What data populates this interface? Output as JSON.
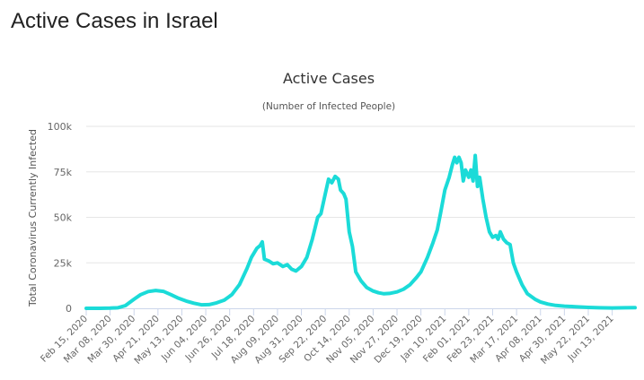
{
  "page": {
    "heading": "Active Cases in Israel"
  },
  "chart_data": {
    "type": "line",
    "title": "Active Cases",
    "subtitle": "(Number of Infected People)",
    "xlabel": "",
    "ylabel": "Total Coronavirus Currently Infected",
    "ylim": [
      0,
      100000
    ],
    "yticks": [
      0,
      25000,
      50000,
      75000,
      100000
    ],
    "ytick_labels": [
      "0",
      "25k",
      "50k",
      "75k",
      "100k"
    ],
    "x_start": "2020-02-15",
    "x_end": "2021-07-04",
    "xtick_dates": [
      "2020-02-15",
      "2020-03-08",
      "2020-03-30",
      "2020-04-21",
      "2020-05-13",
      "2020-06-04",
      "2020-06-26",
      "2020-07-18",
      "2020-08-09",
      "2020-08-31",
      "2020-09-22",
      "2020-10-14",
      "2020-11-05",
      "2020-11-27",
      "2020-12-19",
      "2021-01-10",
      "2021-02-01",
      "2021-02-23",
      "2021-03-17",
      "2021-04-08",
      "2021-04-30",
      "2021-05-22",
      "2021-06-13"
    ],
    "xtick_labels": [
      "Feb 15, 2020",
      "Mar 08, 2020",
      "Mar 30, 2020",
      "Apr 21, 2020",
      "May 13, 2020",
      "Jun 04, 2020",
      "Jun 26, 2020",
      "Jul 18, 2020",
      "Aug 09, 2020",
      "Aug 31, 2020",
      "Sep 22, 2020",
      "Oct 14, 2020",
      "Nov 05, 2020",
      "Nov 27, 2020",
      "Dec 19, 2020",
      "Jan 10, 2021",
      "Feb 01, 2021",
      "Feb 23, 2021",
      "Mar 17, 2021",
      "Apr 08, 2021",
      "Apr 30, 2021",
      "May 22, 2021",
      "Jun 13, 2021"
    ],
    "grid": true,
    "legend": false,
    "series": [
      {
        "color": "#1bdbd8",
        "points": [
          [
            "2020-02-15",
            0
          ],
          [
            "2020-02-28",
            0
          ],
          [
            "2020-03-08",
            100
          ],
          [
            "2020-03-15",
            300
          ],
          [
            "2020-03-22",
            1500
          ],
          [
            "2020-03-30",
            5000
          ],
          [
            "2020-04-05",
            7500
          ],
          [
            "2020-04-12",
            9200
          ],
          [
            "2020-04-19",
            9800
          ],
          [
            "2020-04-26",
            9300
          ],
          [
            "2020-05-03",
            7500
          ],
          [
            "2020-05-10",
            5500
          ],
          [
            "2020-05-17",
            4000
          ],
          [
            "2020-05-24",
            2800
          ],
          [
            "2020-05-31",
            1900
          ],
          [
            "2020-06-07",
            2000
          ],
          [
            "2020-06-14",
            3000
          ],
          [
            "2020-06-21",
            4500
          ],
          [
            "2020-06-28",
            7500
          ],
          [
            "2020-07-05",
            13000
          ],
          [
            "2020-07-12",
            22000
          ],
          [
            "2020-07-16",
            28000
          ],
          [
            "2020-07-21",
            33000
          ],
          [
            "2020-07-24",
            34500
          ],
          [
            "2020-07-26",
            36500
          ],
          [
            "2020-07-28",
            27000
          ],
          [
            "2020-08-01",
            26000
          ],
          [
            "2020-08-05",
            24500
          ],
          [
            "2020-08-09",
            25000
          ],
          [
            "2020-08-14",
            23000
          ],
          [
            "2020-08-18",
            24000
          ],
          [
            "2020-08-22",
            21500
          ],
          [
            "2020-08-26",
            20500
          ],
          [
            "2020-08-31",
            23000
          ],
          [
            "2020-09-05",
            28000
          ],
          [
            "2020-09-10",
            38000
          ],
          [
            "2020-09-15",
            50000
          ],
          [
            "2020-09-18",
            52000
          ],
          [
            "2020-09-22",
            63000
          ],
          [
            "2020-09-25",
            71000
          ],
          [
            "2020-09-28",
            69000
          ],
          [
            "2020-10-01",
            72500
          ],
          [
            "2020-10-04",
            71000
          ],
          [
            "2020-10-06",
            65000
          ],
          [
            "2020-10-09",
            63000
          ],
          [
            "2020-10-11",
            60000
          ],
          [
            "2020-10-14",
            42000
          ],
          [
            "2020-10-17",
            34000
          ],
          [
            "2020-10-20",
            20000
          ],
          [
            "2020-10-25",
            15000
          ],
          [
            "2020-10-30",
            11500
          ],
          [
            "2020-11-05",
            9500
          ],
          [
            "2020-11-10",
            8500
          ],
          [
            "2020-11-15",
            8000
          ],
          [
            "2020-11-20",
            8200
          ],
          [
            "2020-11-27",
            9000
          ],
          [
            "2020-12-03",
            10500
          ],
          [
            "2020-12-09",
            13000
          ],
          [
            "2020-12-15",
            17000
          ],
          [
            "2020-12-19",
            20000
          ],
          [
            "2020-12-25",
            28000
          ],
          [
            "2020-12-30",
            36000
          ],
          [
            "2021-01-03",
            43000
          ],
          [
            "2021-01-06",
            52000
          ],
          [
            "2021-01-10",
            65000
          ],
          [
            "2021-01-14",
            72000
          ],
          [
            "2021-01-17",
            79000
          ],
          [
            "2021-01-19",
            83000
          ],
          [
            "2021-01-21",
            80000
          ],
          [
            "2021-01-23",
            83000
          ],
          [
            "2021-01-25",
            80000
          ],
          [
            "2021-01-27",
            70000
          ],
          [
            "2021-01-29",
            76000
          ],
          [
            "2021-02-01",
            72000
          ],
          [
            "2021-02-03",
            76000
          ],
          [
            "2021-02-05",
            70000
          ],
          [
            "2021-02-07",
            84000
          ],
          [
            "2021-02-09",
            67000
          ],
          [
            "2021-02-11",
            72000
          ],
          [
            "2021-02-14",
            60000
          ],
          [
            "2021-02-17",
            50000
          ],
          [
            "2021-02-20",
            42000
          ],
          [
            "2021-02-23",
            39000
          ],
          [
            "2021-02-26",
            40000
          ],
          [
            "2021-02-28",
            38000
          ],
          [
            "2021-03-02",
            42000
          ],
          [
            "2021-03-05",
            38000
          ],
          [
            "2021-03-08",
            36000
          ],
          [
            "2021-03-11",
            35000
          ],
          [
            "2021-03-14",
            25000
          ],
          [
            "2021-03-17",
            20000
          ],
          [
            "2021-03-22",
            13000
          ],
          [
            "2021-03-27",
            8000
          ],
          [
            "2021-04-03",
            5000
          ],
          [
            "2021-04-08",
            3500
          ],
          [
            "2021-04-15",
            2300
          ],
          [
            "2021-04-22",
            1600
          ],
          [
            "2021-04-30",
            1200
          ],
          [
            "2021-05-10",
            900
          ],
          [
            "2021-05-22",
            500
          ],
          [
            "2021-06-01",
            300
          ],
          [
            "2021-06-13",
            200
          ],
          [
            "2021-06-25",
            300
          ],
          [
            "2021-07-04",
            350
          ]
        ]
      }
    ]
  }
}
